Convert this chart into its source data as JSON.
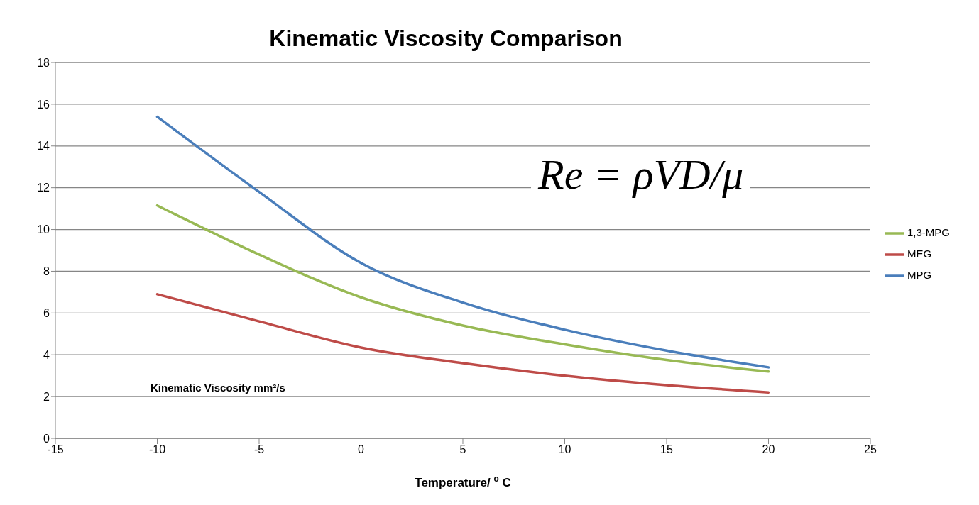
{
  "chart_data": {
    "type": "line",
    "title": "Kinematic Viscosity Comparison",
    "xlabel": "Temperature/ $^{o}$ C",
    "ylabel": "Kinematic Viscosity mm²/s",
    "x": [
      -10,
      -5,
      0,
      5,
      10,
      15,
      20
    ],
    "series": [
      {
        "name": "MPG",
        "color": "#4a7ebb",
        "values": [
          15.4,
          11.8,
          8.4,
          6.5,
          5.2,
          4.2,
          3.4
        ]
      },
      {
        "name": "MEG",
        "color": "#be4b48",
        "values": [
          6.9,
          5.6,
          4.35,
          3.6,
          3.0,
          2.55,
          2.2
        ]
      },
      {
        "name": "1,3-MPG",
        "color": "#98b954",
        "values": [
          11.15,
          8.8,
          6.75,
          5.4,
          4.5,
          3.75,
          3.2
        ]
      }
    ],
    "xlim": [
      -15,
      25
    ],
    "xticks": [
      -15,
      -10,
      -5,
      0,
      5,
      10,
      15,
      20,
      25
    ],
    "ylim": [
      0,
      18
    ],
    "yticks": [
      0,
      2,
      4,
      6,
      8,
      10,
      12,
      14,
      16,
      18
    ],
    "grid": "y",
    "legend": "right",
    "marker": "none",
    "line_style": "solid",
    "annotations": [
      "Re = ρVD/μ"
    ]
  }
}
